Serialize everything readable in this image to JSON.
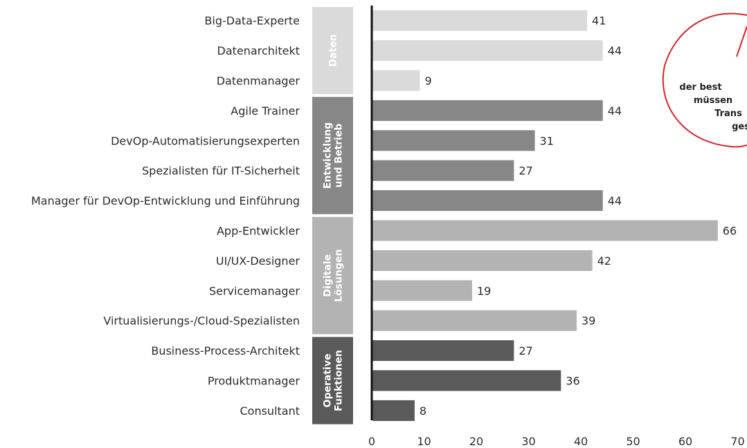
{
  "chart_data": {
    "type": "bar",
    "orientation": "horizontal",
    "xlim": [
      0,
      70
    ],
    "xticks": [
      0,
      10,
      20,
      30,
      40,
      50,
      60,
      70
    ],
    "grid": false,
    "groups": [
      {
        "name": "Daten",
        "color": "#dadada",
        "items": [
          {
            "label": "Big-Data-Experte",
            "value": 41
          },
          {
            "label": "Datenarchitekt",
            "value": 44
          },
          {
            "label": "Datenmanager",
            "value": 9
          }
        ]
      },
      {
        "name": "Entwicklung und Betrieb",
        "name_lines": [
          "Entwicklung",
          "und Betrieb"
        ],
        "color": "#878787",
        "items": [
          {
            "label": "Agile Trainer",
            "value": 44
          },
          {
            "label": "DevOp-Automatisierungsexperten",
            "value": 31
          },
          {
            "label": "Spezialisten für IT-Sicherheit",
            "value": 27
          },
          {
            "label": "Manager für DevOp-Entwicklung und Einführung",
            "value": 44
          }
        ]
      },
      {
        "name": "Digitale Lösungen",
        "name_lines": [
          "Digitale",
          "Lösungen"
        ],
        "color": "#b3b3b3",
        "items": [
          {
            "label": "App-Entwickler",
            "value": 66
          },
          {
            "label": "UI/UX-Designer",
            "value": 42
          },
          {
            "label": "Servicemanager",
            "value": 19
          },
          {
            "label": "Virtualisierungs-/Cloud-Spezialisten",
            "value": 39
          }
        ]
      },
      {
        "name": "Operative Funktionen",
        "name_lines": [
          "Operative",
          "Funktionen"
        ],
        "color": "#5a5a5a",
        "items": [
          {
            "label": "Business-Process-Architekt",
            "value": 27
          },
          {
            "label": "Produktmanager",
            "value": 36
          },
          {
            "label": "Consultant",
            "value": 8
          }
        ]
      }
    ]
  },
  "callout": {
    "lines": [
      "der best",
      "müssen",
      "Trans",
      "ges"
    ],
    "color": "#d8232a"
  }
}
